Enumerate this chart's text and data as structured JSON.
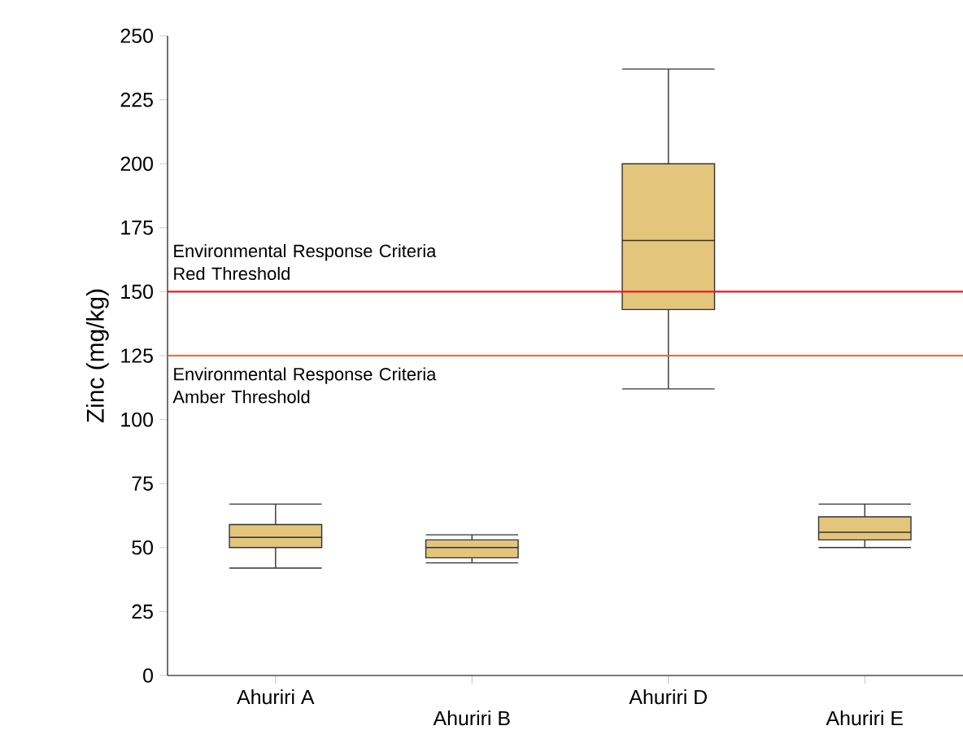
{
  "chart_data": {
    "type": "box",
    "ylabel": "Zinc (mg/kg)",
    "categories": [
      "Ahuriri A",
      "Ahuriri B",
      "Ahuriri D",
      "Ahuriri E"
    ],
    "boxes": [
      {
        "low": 42,
        "q1": 50,
        "median": 54,
        "q3": 59,
        "high": 67
      },
      {
        "low": 44,
        "q1": 46,
        "median": 50,
        "q3": 53,
        "high": 55
      },
      {
        "low": 112,
        "q1": 143,
        "median": 170,
        "q3": 200,
        "high": 237
      },
      {
        "low": 50,
        "q1": 53,
        "median": 56,
        "q3": 62,
        "high": 67
      }
    ],
    "color": "#e3c57c",
    "ylim": [
      0,
      250
    ],
    "yticks": [
      0,
      25,
      50,
      75,
      100,
      125,
      150,
      175,
      200,
      225,
      250
    ],
    "ref_lines": [
      {
        "axis": "y",
        "value": 150,
        "label": "Environmental Response Criteria Red Threshold",
        "color": "#e02027"
      },
      {
        "axis": "y",
        "value": 125,
        "label": "Environmental Response Criteria Amber Threshold",
        "color": "#f26b2f"
      }
    ],
    "grid": false
  }
}
